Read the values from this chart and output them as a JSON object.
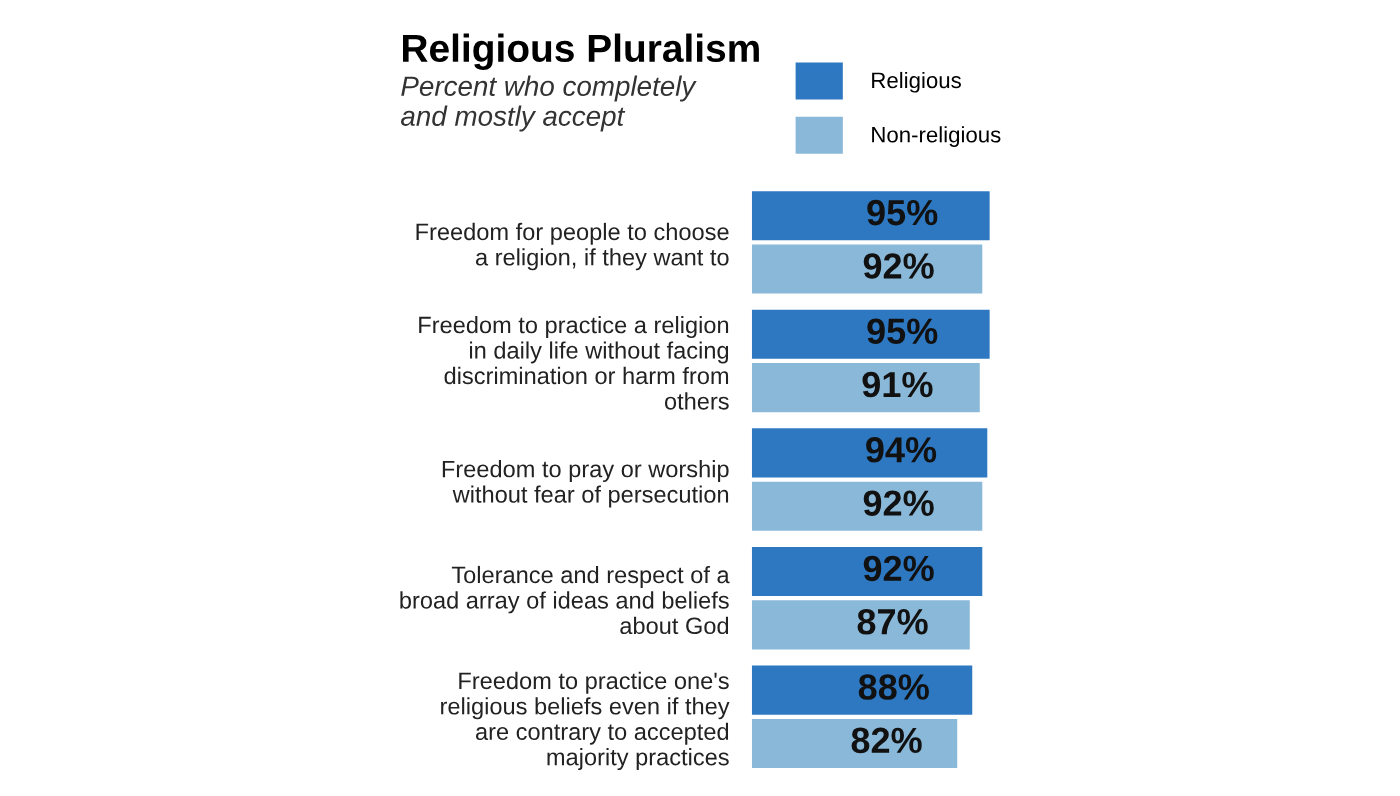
{
  "chart_data": {
    "type": "bar",
    "orientation": "horizontal",
    "title": "Religious Pluralism",
    "subtitle": "Percent who completely\nand mostly accept",
    "categories": [
      "Freedom for people to choose\na religion, if they want to",
      "Freedom to practice a religion\nin daily life without facing\ndiscrimination or harm from\nothers",
      "Freedom to pray or worship\nwithout fear of persecution",
      "Tolerance and respect of a\nbroad array of ideas and beliefs\nabout God",
      "Freedom to practice one's\nreligious beliefs even if they\nare contrary to accepted\nmajority practices"
    ],
    "series": [
      {
        "name": "Religious",
        "color": "#2e78c2",
        "values": [
          95,
          95,
          94,
          92,
          88
        ],
        "value_labels": [
          "95%",
          "95%",
          "94%",
          "92%",
          "88%"
        ]
      },
      {
        "name": "Non-religious",
        "color": "#8ab8d8",
        "values": [
          92,
          91,
          92,
          87,
          82
        ],
        "value_labels": [
          "92%",
          "91%",
          "92%",
          "87%",
          "82%"
        ]
      }
    ],
    "legend": "top right",
    "grid": false
  }
}
